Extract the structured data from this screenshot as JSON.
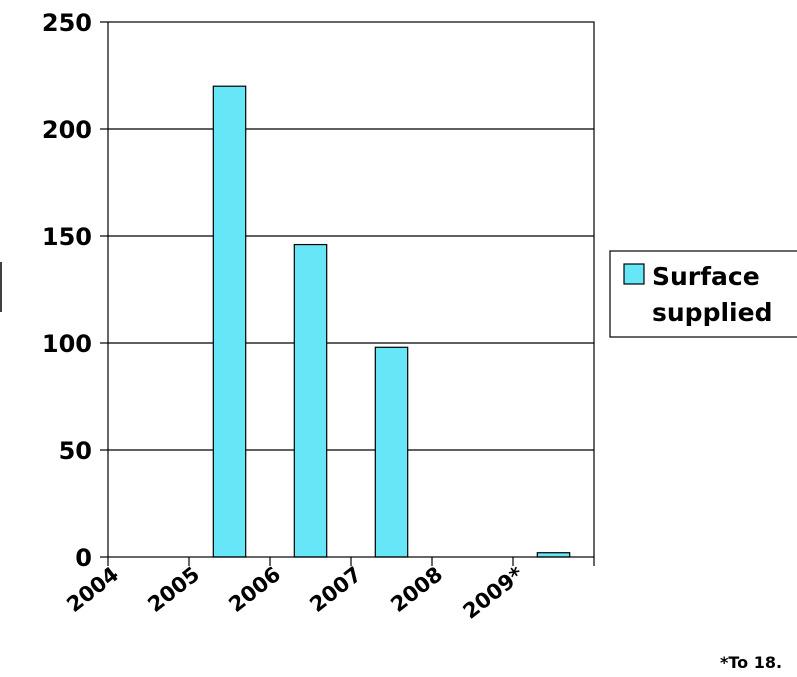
{
  "chart_data": {
    "type": "bar",
    "categories": [
      "2004",
      "2005",
      "2006",
      "2007",
      "2008",
      "2009*"
    ],
    "series": [
      {
        "name": "Surface supplied",
        "values": [
          0,
          220,
          146,
          98,
          0,
          2
        ]
      }
    ],
    "title": "",
    "xlabel": "",
    "ylabel": "",
    "ylim": [
      0,
      250
    ],
    "yticks": [
      0,
      50,
      100,
      150,
      200,
      250
    ],
    "grid": true,
    "legend": "right",
    "legend_lines": [
      "Surface",
      "supplied"
    ],
    "footnote": "*To 18.",
    "colors": {
      "bar": "#66e6f7",
      "bar_edge": "#000000",
      "grid": "#000000"
    }
  }
}
